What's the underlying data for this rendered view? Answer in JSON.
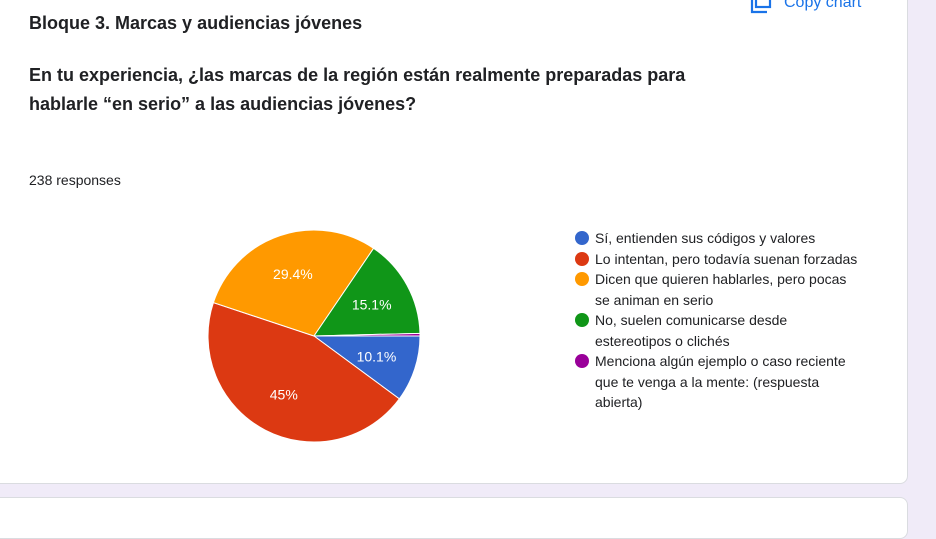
{
  "section_title": "Bloque 3. Marcas y audiencias jóvenes",
  "question": "En tu experiencia, ¿las marcas de la región están realmente preparadas para hablarle “en serio” a las audiencias jóvenes?",
  "responses_label": "238 responses",
  "copy_chart_label": "Copy chart",
  "copy_icon": "copy-icon",
  "chart_data": {
    "type": "pie",
    "start_angle_deg": 90,
    "direction": "clockwise",
    "legend_position": "right",
    "slices": [
      {
        "label": "Sí, entienden sus códigos y valores",
        "value": 10.1,
        "display": "10.1%",
        "color": "#3366cc"
      },
      {
        "label": "Lo intentan, pero todavía suenan forzadas",
        "value": 45,
        "display": "45%",
        "color": "#dc3912"
      },
      {
        "label": "Dicen que quieren hablarles, pero pocas se animan en serio",
        "value": 29.4,
        "display": "29.4%",
        "color": "#ff9900"
      },
      {
        "label": "No, suelen comunicarse desde estereotipos o clichés",
        "value": 15.1,
        "display": "15.1%",
        "color": "#109618"
      },
      {
        "label": "Menciona algún ejemplo o caso reciente que te venga a la mente: (respuesta abierta)",
        "value": 0.4,
        "display": "",
        "color": "#990099"
      }
    ]
  }
}
